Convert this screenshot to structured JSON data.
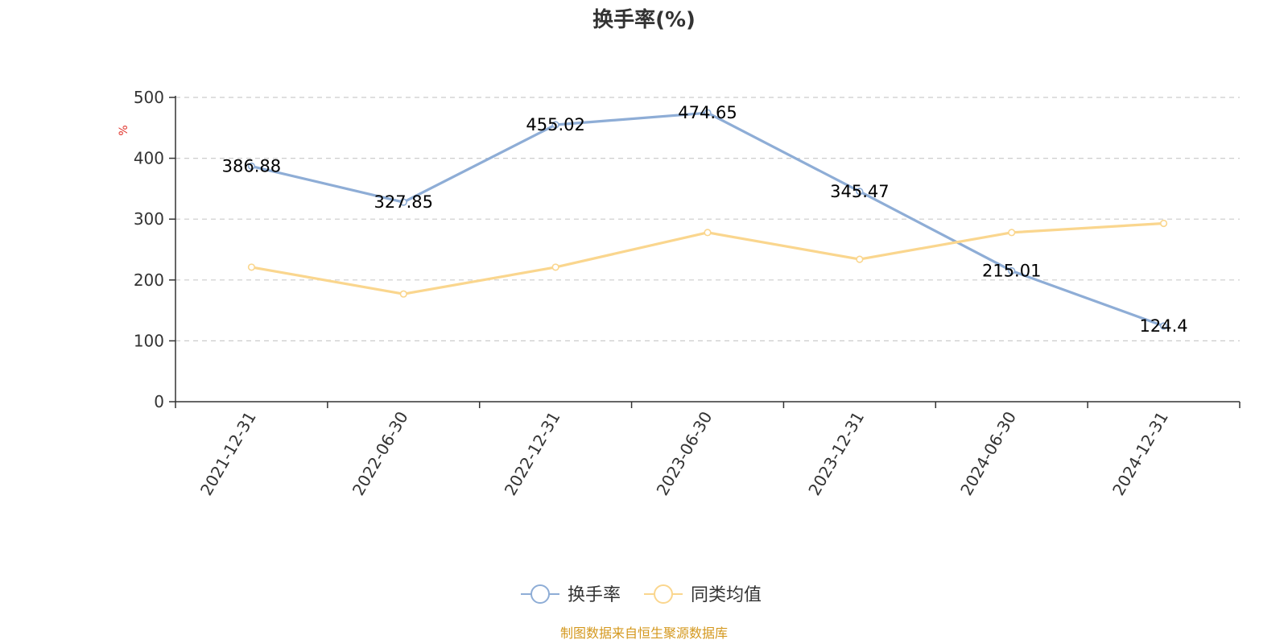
{
  "colors": {
    "series_primary": "#8eadd6",
    "series_secondary": "#fad68e",
    "unit_label": "#e0322a",
    "source_text": "#d4981e",
    "grid": "#cccccc",
    "axis": "#333333"
  },
  "footer": {
    "source": "制图数据来自恒生聚源数据库"
  },
  "chart_data": {
    "type": "line",
    "title": "换手率(%)",
    "ylabel": "%",
    "xlabel": "",
    "ylim": [
      0,
      500
    ],
    "yticks": [
      0,
      100,
      200,
      300,
      400,
      500
    ],
    "grid": true,
    "legend_position": "bottom-center",
    "categories": [
      "2021-12-31",
      "2022-06-30",
      "2022-12-31",
      "2023-06-30",
      "2023-12-31",
      "2024-06-30",
      "2024-12-31"
    ],
    "series": [
      {
        "name": "换手率",
        "values": [
          386.88,
          327.85,
          455.02,
          474.65,
          345.47,
          215.01,
          124.4
        ],
        "show_labels": true
      },
      {
        "name": "同类均值",
        "values": [
          221,
          177,
          221,
          278,
          234,
          278,
          293
        ],
        "show_labels": false
      }
    ]
  }
}
